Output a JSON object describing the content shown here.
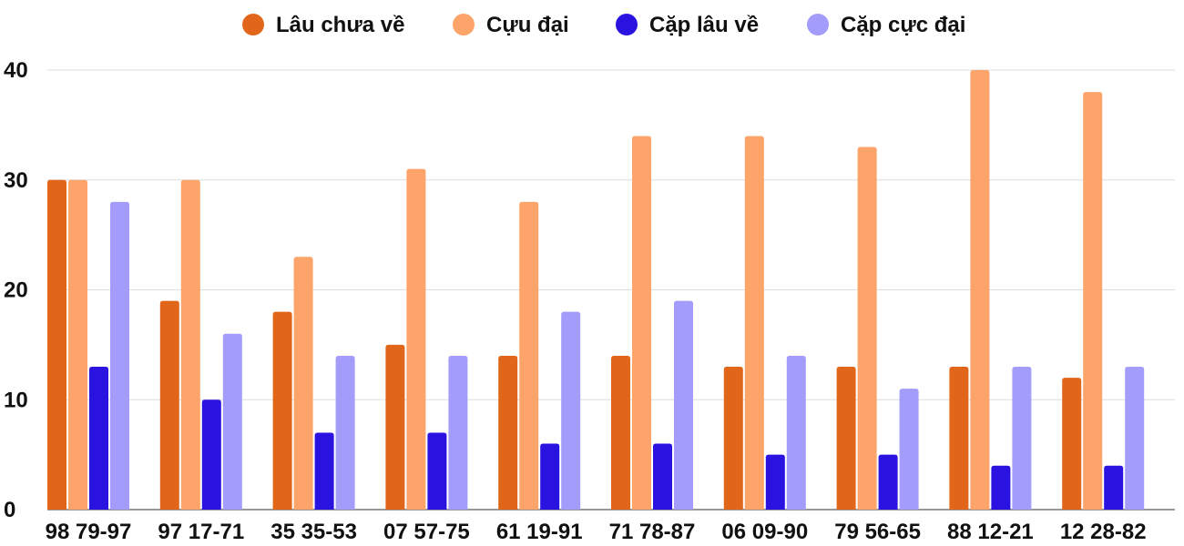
{
  "chart_data": {
    "type": "bar",
    "title": "",
    "xlabel": "",
    "ylabel": "",
    "ylim": [
      0,
      40
    ],
    "yticks": [
      0,
      10,
      20,
      30,
      40
    ],
    "grid": true,
    "legend_position": "top-center",
    "categories": [
      "98 79-97",
      "97 17-71",
      "35 35-53",
      "07 57-75",
      "61 19-91",
      "71 78-87",
      "06 09-90",
      "79 56-65",
      "88 12-21",
      "12 28-82"
    ],
    "series": [
      {
        "name": "Lâu chưa về",
        "color": "#e2661a",
        "values": [
          30,
          19,
          18,
          15,
          14,
          14,
          13,
          13,
          13,
          12
        ]
      },
      {
        "name": "Cựu đại",
        "color": "#fca46a",
        "values": [
          30,
          30,
          23,
          31,
          28,
          34,
          34,
          33,
          40,
          38
        ]
      },
      {
        "name": "Cặp lâu về",
        "color": "#2a13e0",
        "values": [
          13,
          10,
          7,
          7,
          6,
          6,
          5,
          5,
          4,
          4
        ]
      },
      {
        "name": "Cặp cực đại",
        "color": "#a39cfa",
        "values": [
          28,
          16,
          14,
          14,
          18,
          19,
          14,
          11,
          13,
          13
        ]
      }
    ]
  }
}
